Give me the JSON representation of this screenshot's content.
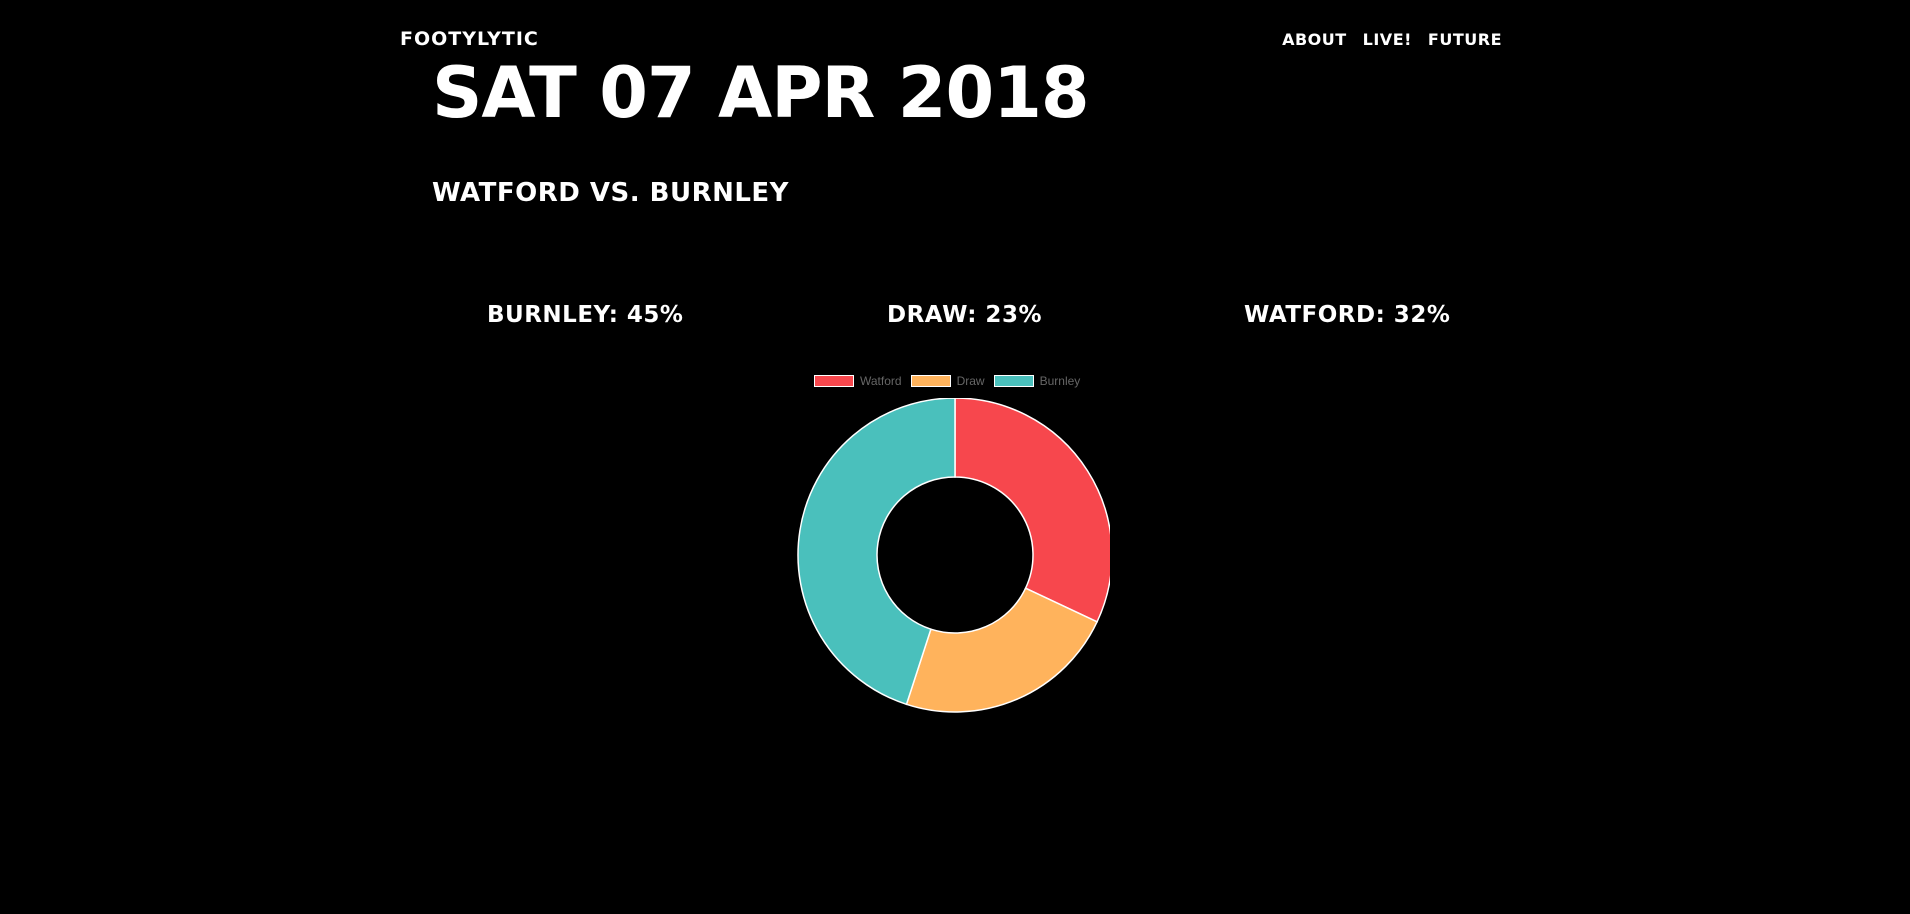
{
  "header": {
    "brand": "FOOTYLYTIC",
    "nav": [
      {
        "label": "ABOUT"
      },
      {
        "label": "LIVE!"
      },
      {
        "label": "FUTURE"
      }
    ]
  },
  "match": {
    "date": "SAT 07 APR 2018",
    "title": "WATFORD VS. BURNLEY"
  },
  "odds": {
    "burnley": "BURNLEY: 45%",
    "draw": "DRAW: 23%",
    "watford": "WATFORD: 32%"
  },
  "chart_data": {
    "type": "pie",
    "variant": "doughnut",
    "categories": [
      "Watford",
      "Draw",
      "Burnley"
    ],
    "values": [
      32,
      23,
      45
    ],
    "colors": [
      "#f7474d",
      "#ffb35c",
      "#4ac0bc"
    ],
    "legend": "top",
    "start": "top",
    "direction": "clockwise"
  }
}
